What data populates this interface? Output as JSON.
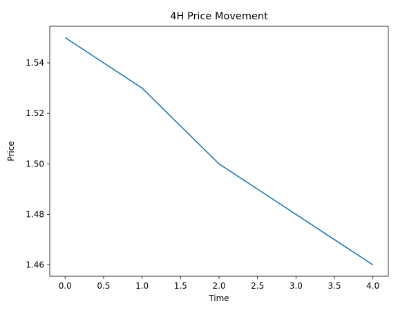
{
  "chart_data": {
    "type": "line",
    "title": "4H Price Movement",
    "xlabel": "Time",
    "ylabel": "Price",
    "x": [
      0,
      1,
      2,
      3,
      4
    ],
    "series": [
      {
        "values": [
          1.55,
          1.53,
          1.5,
          1.48,
          1.46
        ],
        "color": "#1f77b4"
      }
    ],
    "xlim": [
      -0.2,
      4.2
    ],
    "ylim": [
      1.4555,
      1.5545
    ],
    "xticks": [
      0.0,
      0.5,
      1.0,
      1.5,
      2.0,
      2.5,
      3.0,
      3.5,
      4.0
    ],
    "xtick_labels": [
      "0.0",
      "0.5",
      "1.0",
      "1.5",
      "2.0",
      "2.5",
      "3.0",
      "3.5",
      "4.0"
    ],
    "yticks": [
      1.46,
      1.48,
      1.5,
      1.52,
      1.54
    ],
    "ytick_labels": [
      "1.46",
      "1.48",
      "1.50",
      "1.52",
      "1.54"
    ],
    "grid": false,
    "legend": "none"
  }
}
